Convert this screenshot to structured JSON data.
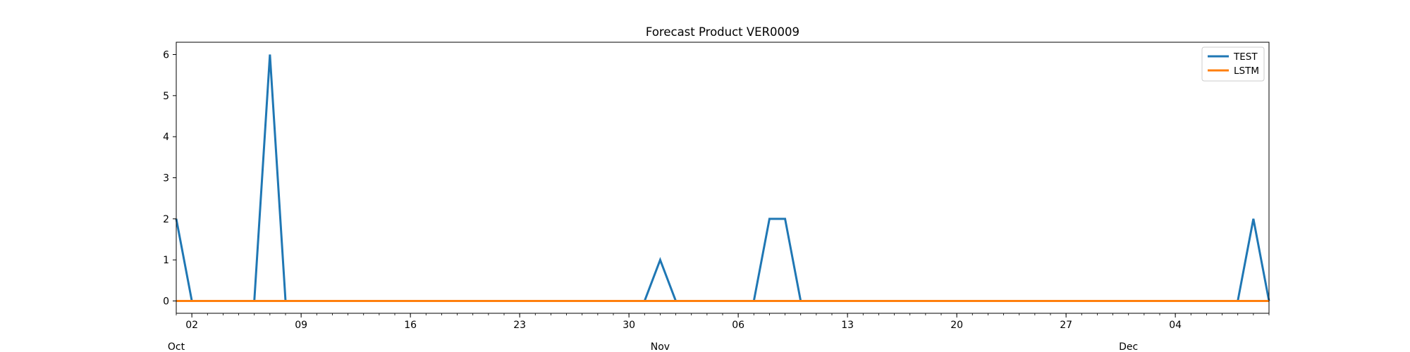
{
  "chart_data": {
    "type": "line",
    "title": "Forecast Product VER0009",
    "xlabel": "",
    "ylabel": "",
    "x_start": "2023-10-01",
    "x_end": "2023-12-10",
    "ylim": [
      -0.3,
      6.3
    ],
    "yticks": [
      0,
      1,
      2,
      3,
      4,
      5,
      6
    ],
    "xticks_major": [
      {
        "date": "2023-10-02",
        "label": "02"
      },
      {
        "date": "2023-10-09",
        "label": "09"
      },
      {
        "date": "2023-10-16",
        "label": "16"
      },
      {
        "date": "2023-10-23",
        "label": "23"
      },
      {
        "date": "2023-10-30",
        "label": "30"
      },
      {
        "date": "2023-11-06",
        "label": "06"
      },
      {
        "date": "2023-11-13",
        "label": "13"
      },
      {
        "date": "2023-11-20",
        "label": "20"
      },
      {
        "date": "2023-11-27",
        "label": "27"
      },
      {
        "date": "2023-12-04",
        "label": "04"
      }
    ],
    "xticks_month": [
      {
        "date": "2023-10-01",
        "label": "Oct"
      },
      {
        "date": "2023-11-01",
        "label": "Nov"
      },
      {
        "date": "2023-12-01",
        "label": "Dec"
      }
    ],
    "legend_position": "top-right",
    "grid": false,
    "series": [
      {
        "name": "TEST",
        "color": "#1f77b4",
        "points": [
          [
            "2023-10-01",
            2
          ],
          [
            "2023-10-02",
            0
          ],
          [
            "2023-10-06",
            0
          ],
          [
            "2023-10-07",
            6
          ],
          [
            "2023-10-08",
            0
          ],
          [
            "2023-10-31",
            0
          ],
          [
            "2023-11-01",
            1
          ],
          [
            "2023-11-02",
            0
          ],
          [
            "2023-11-07",
            0
          ],
          [
            "2023-11-08",
            2
          ],
          [
            "2023-11-09",
            2
          ],
          [
            "2023-11-10",
            0
          ],
          [
            "2023-12-08",
            0
          ],
          [
            "2023-12-09",
            2
          ],
          [
            "2023-12-10",
            0
          ]
        ]
      },
      {
        "name": "LSTM",
        "color": "#ff7f0e",
        "points": [
          [
            "2023-10-01",
            0
          ],
          [
            "2023-12-10",
            0
          ]
        ]
      }
    ]
  }
}
